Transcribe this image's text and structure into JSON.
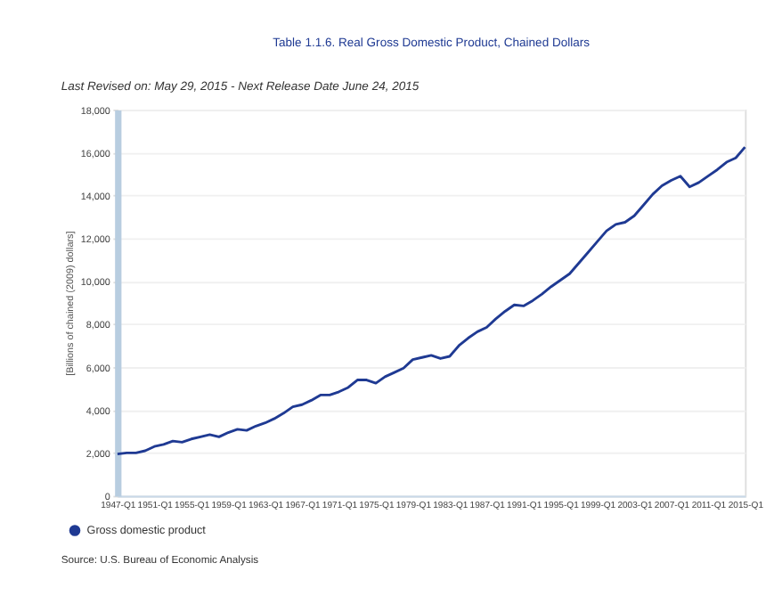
{
  "chart_data": {
    "type": "line",
    "title": "Table 1.1.6. Real Gross Domestic Product, Chained Dollars",
    "subtitle": "Last Revised on: May 29, 2015 - Next Release Date June 24, 2015",
    "ylabel": "[Billions of chained (2009) dollars]",
    "categories": [
      "1947-Q1",
      null,
      null,
      null,
      "1951-Q1",
      null,
      null,
      null,
      "1955-Q1",
      null,
      null,
      null,
      "1959-Q1",
      null,
      null,
      null,
      "1963-Q1",
      null,
      null,
      null,
      "1967-Q1",
      null,
      null,
      null,
      "1971-Q1",
      null,
      null,
      null,
      "1975-Q1",
      null,
      null,
      null,
      "1979-Q1",
      null,
      null,
      null,
      "1983-Q1",
      null,
      null,
      null,
      "1987-Q1",
      null,
      null,
      null,
      "1991-Q1",
      null,
      null,
      null,
      "1995-Q1",
      null,
      null,
      null,
      "1999-Q1",
      null,
      null,
      null,
      "2003-Q1",
      null,
      null,
      null,
      "2007-Q1",
      null,
      null,
      null,
      "2011-Q1",
      null,
      null,
      null,
      "2015-Q1"
    ],
    "series": [
      {
        "name": "Gross domestic product",
        "color": "#1f3a93",
        "values": [
          1950,
          2000,
          2000,
          2100,
          2300,
          2400,
          2550,
          2500,
          2650,
          2750,
          2850,
          2750,
          2950,
          3100,
          3050,
          3250,
          3400,
          3600,
          3850,
          4150,
          4250,
          4450,
          4700,
          4700,
          4850,
          5050,
          5400,
          5400,
          5250,
          5550,
          5750,
          5950,
          6350,
          6450,
          6550,
          6400,
          6500,
          7000,
          7350,
          7650,
          7850,
          8250,
          8600,
          8900,
          8850,
          9100,
          9400,
          9750,
          10050,
          10350,
          10850,
          11350,
          11850,
          12350,
          12650,
          12750,
          13050,
          13550,
          14050,
          14450,
          14700,
          14900,
          14400,
          14600,
          14900,
          15200,
          15550,
          15750,
          16250
        ]
      }
    ],
    "ylim": [
      0,
      18000
    ],
    "yticks": [
      {
        "value": 0,
        "label": "0"
      },
      {
        "value": 2000,
        "label": "2,000"
      },
      {
        "value": 4000,
        "label": "4,000"
      },
      {
        "value": 6000,
        "label": "6,000"
      },
      {
        "value": 8000,
        "label": "8,000"
      },
      {
        "value": 10000,
        "label": "10,000"
      },
      {
        "value": 12000,
        "label": "12,000"
      },
      {
        "value": 14000,
        "label": "14,000"
      },
      {
        "value": 16000,
        "label": "16,000"
      },
      {
        "value": 18000,
        "label": "18,000"
      }
    ],
    "grid": "y",
    "legend": "bottom left",
    "marker": "none",
    "line_style": "solid",
    "annotations": [
      "Source: U.S. Bureau of Economic Analysis"
    ]
  }
}
